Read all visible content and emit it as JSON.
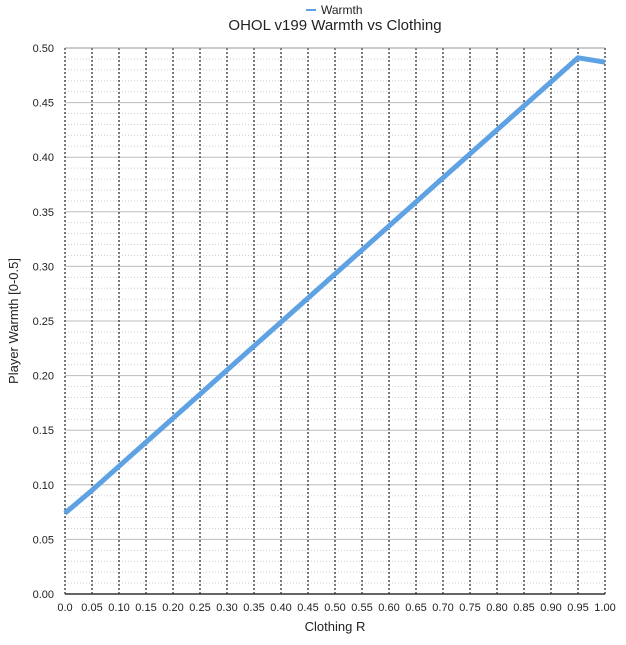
{
  "chart_data": {
    "type": "line",
    "title": "OHOL v199 Warmth vs Clothing",
    "xlabel": "Clothing R",
    "ylabel": "Player Warmth [0-0.5]",
    "xlim": [
      0,
      1
    ],
    "ylim": [
      0,
      0.5
    ],
    "x_ticks": [
      "0.0",
      "0.05",
      "0.10",
      "0.15",
      "0.20",
      "0.25",
      "0.30",
      "0.35",
      "0.40",
      "0.45",
      "0.50",
      "0.55",
      "0.60",
      "0.65",
      "0.70",
      "0.75",
      "0.80",
      "0.85",
      "0.90",
      "0.95",
      "1.00"
    ],
    "y_ticks": [
      "0.00",
      "0.05",
      "0.10",
      "0.15",
      "0.20",
      "0.25",
      "0.30",
      "0.35",
      "0.40",
      "0.45",
      "0.50"
    ],
    "grid": true,
    "legend_position": "top-center",
    "series": [
      {
        "name": "Warmth",
        "color": "#5fa2e4",
        "x": [
          0,
          0.05,
          0.1,
          0.15,
          0.2,
          0.25,
          0.3,
          0.35,
          0.4,
          0.45,
          0.5,
          0.55,
          0.6,
          0.65,
          0.7,
          0.75,
          0.8,
          0.85,
          0.9,
          0.95,
          1.0
        ],
        "y": [
          0.074,
          0.095,
          0.117,
          0.139,
          0.161,
          0.183,
          0.205,
          0.227,
          0.249,
          0.271,
          0.293,
          0.315,
          0.337,
          0.359,
          0.381,
          0.403,
          0.425,
          0.447,
          0.469,
          0.491,
          0.487
        ]
      }
    ]
  }
}
